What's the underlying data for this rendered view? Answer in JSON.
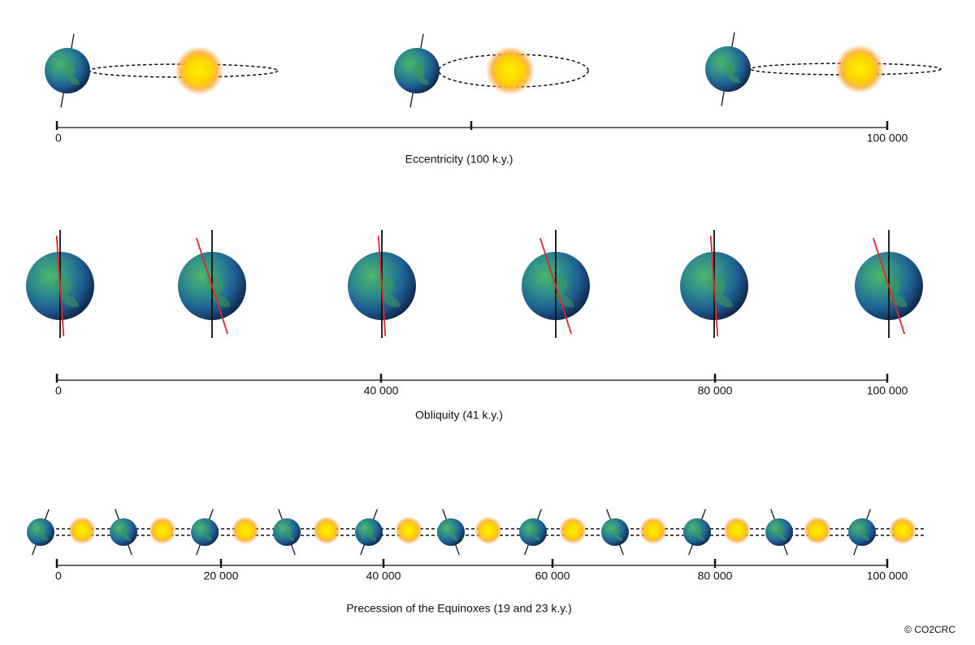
{
  "sections": [
    {
      "title": "Eccentricity (100 k.y.)",
      "ticks": [
        "0",
        "100 000"
      ]
    },
    {
      "title": "Obliquity (41 k.y.)",
      "ticks": [
        "0",
        "40 000",
        "80 000",
        "100 000"
      ]
    },
    {
      "title": "Precession of the Equinoxes (19 and 23 k.y.)",
      "ticks": [
        "0",
        "20 000",
        "40 000",
        "60 000",
        "80 000",
        "100 000"
      ]
    }
  ],
  "copyright": "© CO2CRC"
}
